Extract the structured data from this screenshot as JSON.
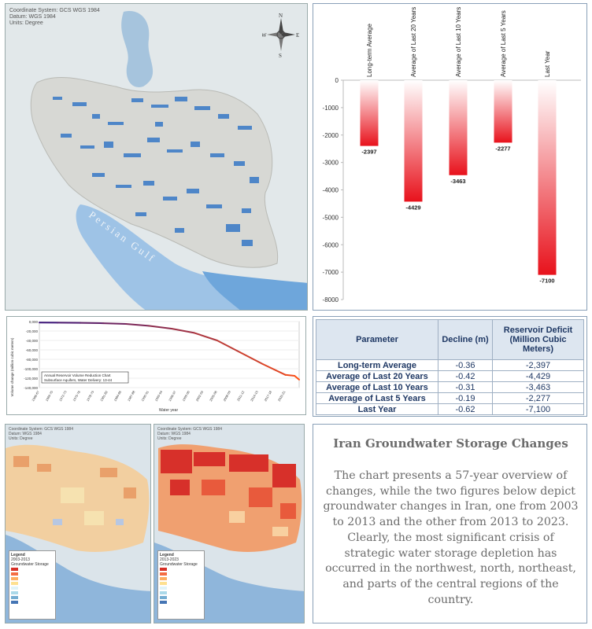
{
  "map_main": {
    "info_lines": [
      "Coordinate System: GCS WGS 1984",
      "Datum: WGS 1984",
      "Units: Degree"
    ],
    "gulf_label": "Persian Gulf",
    "compass": {
      "n": "N",
      "s": "S",
      "e": "E",
      "w": "W"
    }
  },
  "bar_chart": {
    "type": "bar",
    "categories": [
      "Long-term Average",
      "Average of Last 20 Years",
      "Average of Last 10 Years",
      "Average of Last 5 Years",
      "Last Year"
    ],
    "values": [
      -2397,
      -4429,
      -3463,
      -2277,
      -7100
    ],
    "value_labels": [
      "-2397",
      "-4429",
      "-3463",
      "-2277",
      "-7100"
    ],
    "ylim": [
      -8000,
      0
    ],
    "yticks": [
      0,
      -1000,
      -2000,
      -3000,
      -4000,
      -5000,
      -6000,
      -7000,
      -8000
    ],
    "colors": {
      "bar_top": "#ffffff",
      "bar_bottom": "#e8121c"
    }
  },
  "line_chart": {
    "ylabel": "Volume change (million cubic meters)",
    "xlabel": "Water year",
    "yticks": [
      "0,000",
      "-20,000",
      "-40,000",
      "-60,000",
      "-80,000",
      "-100,000",
      "-120,000",
      "-140,000"
    ],
    "legend_lines": [
      "Annual Reservoir Volume Reduction Chart",
      "Subsurface Aquifers, Water Delivery: 13-44"
    ]
  },
  "chart_data": [
    {
      "type": "bar",
      "categories": [
        "Long-term Average",
        "Average of Last 20 Years",
        "Average of Last 10 Years",
        "Average of Last 5 Years",
        "Last Year"
      ],
      "values": [
        -2397,
        -4429,
        -3463,
        -2277,
        -7100
      ],
      "ylim": [
        -8000,
        0
      ]
    },
    {
      "type": "line",
      "x": [
        1966,
        1970,
        1975,
        1980,
        1985,
        1990,
        1995,
        2000,
        2005,
        2010,
        2015,
        2020,
        2022,
        2023
      ],
      "values": [
        -2000,
        -2300,
        -2800,
        -3500,
        -5000,
        -9000,
        -15000,
        -24000,
        -40000,
        -65000,
        -90000,
        -113000,
        -115000,
        -123000
      ],
      "ylim": [
        -140000,
        0
      ]
    }
  ],
  "table": {
    "headers": [
      "Parameter",
      "Decline (m)",
      "Reservoir Deficit (Million Cubic Meters)"
    ],
    "rows": [
      [
        "Long-term Average",
        "-0.36",
        "-2,397"
      ],
      [
        "Average of Last 20 Years",
        "-0.42",
        "-4,429"
      ],
      [
        "Average of Last 10 Years",
        "-0.31",
        "-3,463"
      ],
      [
        "Average of Last 5 Years",
        "-0.19",
        "-2,277"
      ],
      [
        "Last Year",
        "-0.62",
        "-7,100"
      ]
    ]
  },
  "map_left": {
    "info_lines": [
      "Coordinate System: GCS WGS 1984",
      "Datum: WGS 1984",
      "Units: Degree"
    ],
    "legend_title": "Legend",
    "legend_sub": "2003-2013",
    "legend_heading": "Groundwater Storage"
  },
  "map_right": {
    "info_lines": [
      "Coordinate System: GCS WGS 1984",
      "Datum: WGS 1984",
      "Units: Degree"
    ],
    "legend_title": "Legend",
    "legend_sub": "2013-2023",
    "legend_heading": "Groundwater Storage"
  },
  "text_panel": {
    "title": "Iran Groundwater Storage Changes",
    "body": "The chart presents a 57-year overview of changes, while the two figures below depict groundwater changes in Iran, one from 2003 to 2013 and the other from 2013 to 2023. Clearly, the most significant crisis of strategic water storage depletion has occurred in the northwest, north, northeast, and parts of the central regions of the country."
  }
}
